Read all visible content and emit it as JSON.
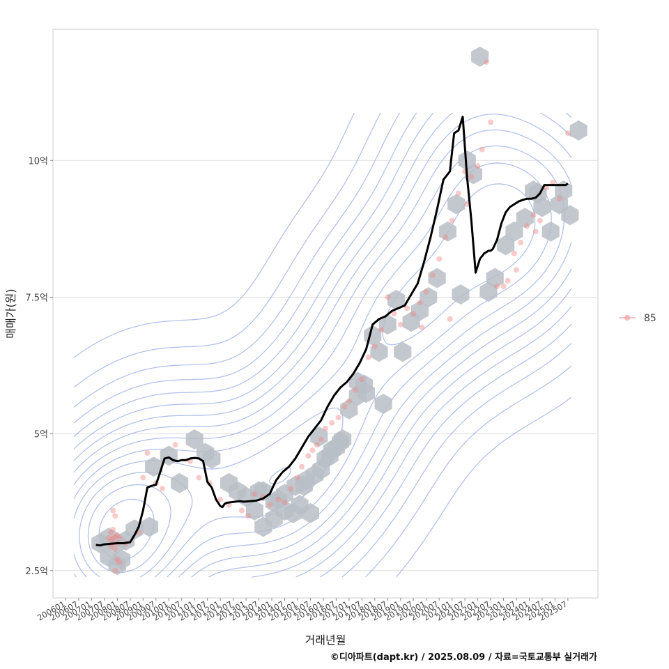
{
  "chart_data": {
    "type": "line",
    "xlabel": "거래년월",
    "ylabel": "매매가(원)",
    "caption": "©디아파트(dapt.kr) / 2025.08.09 / 자료=국토교통부 실거래가",
    "x_ticks": [
      "200601",
      "200607",
      "200701",
      "200707",
      "200801",
      "200807",
      "200901",
      "200907",
      "201001",
      "201007",
      "201101",
      "201107",
      "201201",
      "201207",
      "201301",
      "201307",
      "201401",
      "201407",
      "201501",
      "201507",
      "201601",
      "201607",
      "201701",
      "201707",
      "201801",
      "201807",
      "201901",
      "201907",
      "202001",
      "202007",
      "202101",
      "202107",
      "202201",
      "202207",
      "202301",
      "202307",
      "202401",
      "202407",
      "202501",
      "202507"
    ],
    "y_ticks": [
      {
        "value": 2.5,
        "label": "2.5억"
      },
      {
        "value": 5,
        "label": "5억"
      },
      {
        "value": 7.5,
        "label": "7.5억"
      },
      {
        "value": 10,
        "label": "10억"
      }
    ],
    "xlim": [
      "2005-07",
      "2026-09"
    ],
    "ylim": [
      2.0,
      12.4
    ],
    "y_unit": "억원",
    "grid": "horizontal",
    "legend": {
      "position": "right",
      "entries": [
        {
          "label": "85",
          "color": "#f4a0a0"
        }
      ]
    },
    "colors": {
      "trend": "#000000",
      "points": "#f08a8a",
      "hex": "#b9bec6",
      "contour": "#9fb2e8",
      "grid": "#dddddd",
      "panel_border": "#cccccc"
    },
    "series": [
      {
        "kind": "moving-average",
        "x": [
          "2007-03",
          "2007-05",
          "2007-07",
          "2007-10",
          "2008-01",
          "2008-04",
          "2008-07",
          "2008-09",
          "2008-11",
          "2009-01",
          "2009-03",
          "2009-05",
          "2009-07",
          "2009-09",
          "2009-11",
          "2010-01",
          "2010-03",
          "2010-05",
          "2010-07",
          "2010-09",
          "2010-11",
          "2011-01",
          "2011-03",
          "2011-05",
          "2011-07",
          "2011-09",
          "2011-11",
          "2012-01",
          "2012-02",
          "2012-03",
          "2012-04",
          "2012-06",
          "2012-08",
          "2012-10",
          "2012-12",
          "2013-03",
          "2013-06",
          "2013-09",
          "2013-12",
          "2014-03",
          "2014-06",
          "2014-09",
          "2014-12",
          "2015-03",
          "2015-06",
          "2015-09",
          "2015-12",
          "2016-03",
          "2016-06",
          "2016-09",
          "2016-12",
          "2017-03",
          "2017-06",
          "2017-09",
          "2017-12",
          "2018-03",
          "2018-06",
          "2018-09",
          "2018-12",
          "2019-03",
          "2019-06",
          "2019-09",
          "2019-12",
          "2020-03",
          "2020-06",
          "2020-09",
          "2020-12",
          "2021-02",
          "2021-04",
          "2021-06",
          "2021-08",
          "2021-10",
          "2021-12",
          "2022-02",
          "2022-04",
          "2022-06",
          "2022-07",
          "2022-08",
          "2022-10",
          "2022-12",
          "2023-02",
          "2023-04",
          "2023-06",
          "2023-08",
          "2023-10",
          "2023-12",
          "2024-02",
          "2024-04",
          "2024-06",
          "2024-08",
          "2024-10",
          "2024-12",
          "2025-02",
          "2025-04",
          "2025-06",
          "2025-07"
        ],
        "y": [
          2.97,
          2.96,
          2.98,
          2.99,
          3.0,
          3.0,
          3.02,
          3.15,
          3.3,
          3.6,
          4.02,
          4.05,
          4.07,
          4.3,
          4.55,
          4.57,
          4.52,
          4.5,
          4.52,
          4.52,
          4.55,
          4.56,
          4.55,
          4.5,
          4.12,
          4.02,
          3.8,
          3.68,
          3.66,
          3.72,
          3.74,
          3.75,
          3.76,
          3.77,
          3.76,
          3.77,
          3.78,
          3.82,
          3.9,
          4.15,
          4.3,
          4.4,
          4.55,
          4.75,
          4.95,
          5.1,
          5.25,
          5.5,
          5.7,
          5.85,
          5.95,
          6.1,
          6.3,
          6.55,
          7.0,
          7.1,
          7.15,
          7.25,
          7.3,
          7.35,
          7.55,
          7.75,
          8.15,
          8.6,
          9.1,
          9.65,
          9.8,
          10.5,
          10.55,
          10.8,
          9.7,
          8.9,
          7.95,
          8.2,
          8.3,
          8.35,
          8.35,
          8.38,
          8.55,
          8.85,
          9.05,
          9.15,
          9.2,
          9.25,
          9.28,
          9.3,
          9.3,
          9.32,
          9.4,
          9.55,
          9.55,
          9.55,
          9.55,
          9.55,
          9.55,
          9.58
        ]
      },
      {
        "kind": "scatter",
        "name": "85",
        "x": [
          "2007-09",
          "2007-10",
          "2007-11",
          "2007-12",
          "2008-01",
          "2008-02",
          "2007-10",
          "2007-11",
          "2007-12",
          "2008-01",
          "2007-11",
          "2007-12",
          "2008-01",
          "2007-12",
          "2008-02",
          "2007-10",
          "2007-11",
          "2008-05",
          "2008-11",
          "2009-01",
          "2009-03",
          "2009-07",
          "2009-10",
          "2010-04",
          "2010-11",
          "2011-03",
          "2011-08",
          "2012-01",
          "2012-05",
          "2012-11",
          "2013-02",
          "2013-05",
          "2013-09",
          "2013-12",
          "2014-04",
          "2014-07",
          "2014-10",
          "2015-01",
          "2015-03",
          "2015-06",
          "2015-08",
          "2015-10",
          "2015-12",
          "2016-02",
          "2016-05",
          "2016-08",
          "2016-11",
          "2017-01",
          "2017-04",
          "2017-07",
          "2017-10",
          "2018-01",
          "2018-04",
          "2018-07",
          "2018-10",
          "2019-01",
          "2019-04",
          "2019-07",
          "2019-10",
          "2020-01",
          "2020-04",
          "2020-07",
          "2020-10",
          "2021-01",
          "2021-04",
          "2021-07",
          "2021-10",
          "2022-01",
          "2022-03",
          "2022-05",
          "2022-07",
          "2022-10",
          "2023-01",
          "2023-03",
          "2023-06",
          "2023-09",
          "2023-12",
          "2024-03",
          "2024-06",
          "2024-09",
          "2024-12",
          "2025-03",
          "2025-07",
          "2024-04",
          "2023-07",
          "2021-08",
          "2020-12",
          "2019-11"
        ],
        "y": [
          3.1,
          3.05,
          3.0,
          3.12,
          3.15,
          3.1,
          3.2,
          3.25,
          2.9,
          3.0,
          3.6,
          3.5,
          2.7,
          2.5,
          2.65,
          2.95,
          3.1,
          3.0,
          3.2,
          4.2,
          4.65,
          4.1,
          4.0,
          4.8,
          4.5,
          4.2,
          4.1,
          3.8,
          3.7,
          3.6,
          3.5,
          3.9,
          3.85,
          3.7,
          3.8,
          3.75,
          4.0,
          4.2,
          4.4,
          4.6,
          4.7,
          4.8,
          4.9,
          5.1,
          5.2,
          5.3,
          5.5,
          5.6,
          5.8,
          6.0,
          6.4,
          6.6,
          6.9,
          7.5,
          7.2,
          7.0,
          7.3,
          7.2,
          7.4,
          7.6,
          7.9,
          8.2,
          8.6,
          8.9,
          9.4,
          9.8,
          9.7,
          9.9,
          10.2,
          11.8,
          10.7,
          7.7,
          7.7,
          7.8,
          8.3,
          8.5,
          8.8,
          9.0,
          8.9,
          9.5,
          9.6,
          9.3,
          10.5,
          8.7,
          8.0,
          9.2,
          7.1,
          6.95
        ]
      }
    ],
    "hex_bins": {
      "x": [
        "2007-05",
        "2007-09",
        "2008-01",
        "2008-05",
        "2007-09",
        "2008-01",
        "2008-03",
        "2009-04",
        "2009-06",
        "2010-01",
        "2010-06",
        "2011-01",
        "2011-09",
        "2011-06",
        "2012-05",
        "2013-01",
        "2013-05",
        "2013-09",
        "2014-02",
        "2014-07",
        "2014-11",
        "2013-09",
        "2014-02",
        "2014-07",
        "2015-02",
        "2015-07",
        "2015-12",
        "2016-04",
        "2016-09",
        "2015-04",
        "2015-09",
        "2016-02",
        "2016-07",
        "2017-01",
        "2017-05",
        "2017-09",
        "2017-05",
        "2017-12",
        "2018-03",
        "2018-07",
        "2018-11",
        "2019-02",
        "2019-06",
        "2019-10",
        "2020-02",
        "2020-06",
        "2020-11",
        "2021-03",
        "2021-08",
        "2021-11",
        "2022-02",
        "2022-06",
        "2022-09",
        "2023-02",
        "2023-06",
        "2023-11",
        "2024-03",
        "2024-07",
        "2024-11",
        "2025-03",
        "2025-08",
        "2025-12",
        "2025-05",
        "2024-05",
        "2021-05",
        "2015-05",
        "2016-05",
        "2018-05",
        "2014-04",
        "2013-07",
        "2017-08",
        "2016-10",
        "2012-09",
        "2008-09",
        "2014-12",
        "2015-11"
      ],
      "y": [
        3.0,
        3.1,
        3.0,
        3.05,
        2.75,
        2.6,
        2.7,
        3.3,
        4.4,
        4.6,
        4.1,
        4.9,
        4.55,
        4.65,
        4.1,
        3.85,
        3.6,
        3.95,
        3.75,
        3.9,
        3.55,
        3.3,
        3.45,
        3.6,
        3.7,
        3.55,
        4.35,
        4.6,
        4.85,
        4.05,
        4.25,
        4.55,
        4.75,
        5.45,
        5.7,
        5.75,
        5.95,
        6.8,
        6.5,
        7.0,
        7.45,
        6.5,
        7.05,
        7.25,
        7.5,
        7.85,
        8.7,
        9.2,
        10.0,
        9.75,
        11.9,
        7.6,
        7.85,
        8.45,
        8.7,
        8.95,
        9.45,
        9.15,
        8.7,
        9.2,
        9.0,
        10.55,
        9.45,
        9.4,
        7.55,
        4.15,
        4.7,
        5.55,
        3.8,
        3.95,
        5.9,
        4.9,
        3.95,
        3.25,
        4.05,
        4.95
      ]
    }
  }
}
